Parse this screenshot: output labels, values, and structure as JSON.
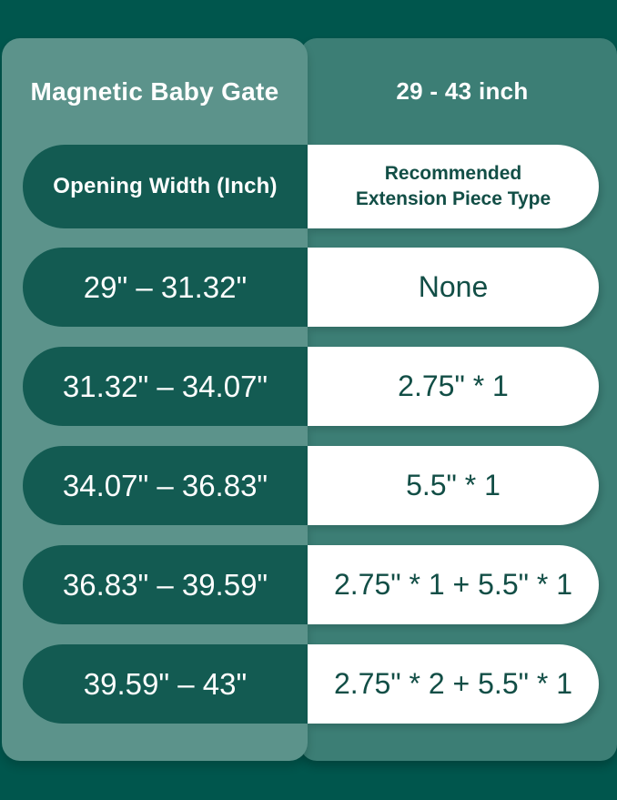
{
  "header": {
    "product_name": "Magnetic Baby Gate",
    "size_range": "29 - 43 inch"
  },
  "table": {
    "col1_header": "Opening Width (Inch)",
    "col2_header_line1": "Recommended",
    "col2_header_line2": "Extension Piece Type",
    "rows": [
      {
        "width": "29\" – 31.32\"",
        "extension": "None"
      },
      {
        "width": "31.32\" – 34.07\"",
        "extension": "2.75\" * 1"
      },
      {
        "width": "34.07\" – 36.83\"",
        "extension": "5.5\" * 1"
      },
      {
        "width": "36.83\" – 39.59\"",
        "extension": "2.75\" * 1 + 5.5\" * 1"
      },
      {
        "width": "39.59\" – 43\"",
        "extension": "2.75\" * 2 + 5.5\" * 1"
      }
    ]
  },
  "colors": {
    "page_background": "#00564D",
    "left_panel": "#5C938B",
    "right_panel": "#3C7E75",
    "dark_pill": "#135B52",
    "white_pill": "#FFFFFF",
    "dark_text": "#124E46",
    "light_text": "#FFFFFF"
  },
  "chart_data": {
    "type": "table",
    "title": "Magnetic Baby Gate",
    "subtitle": "29 - 43 inch",
    "columns": [
      "Opening Width (Inch)",
      "Recommended Extension Piece Type"
    ],
    "rows": [
      [
        "29\" – 31.32\"",
        "None"
      ],
      [
        "31.32\" – 34.07\"",
        "2.75\" * 1"
      ],
      [
        "34.07\" – 36.83\"",
        "5.5\" * 1"
      ],
      [
        "36.83\" – 39.59\"",
        "2.75\" * 1 + 5.5\" * 1"
      ],
      [
        "39.59\" – 43\"",
        "2.75\" * 2 + 5.5\" * 1"
      ]
    ]
  }
}
